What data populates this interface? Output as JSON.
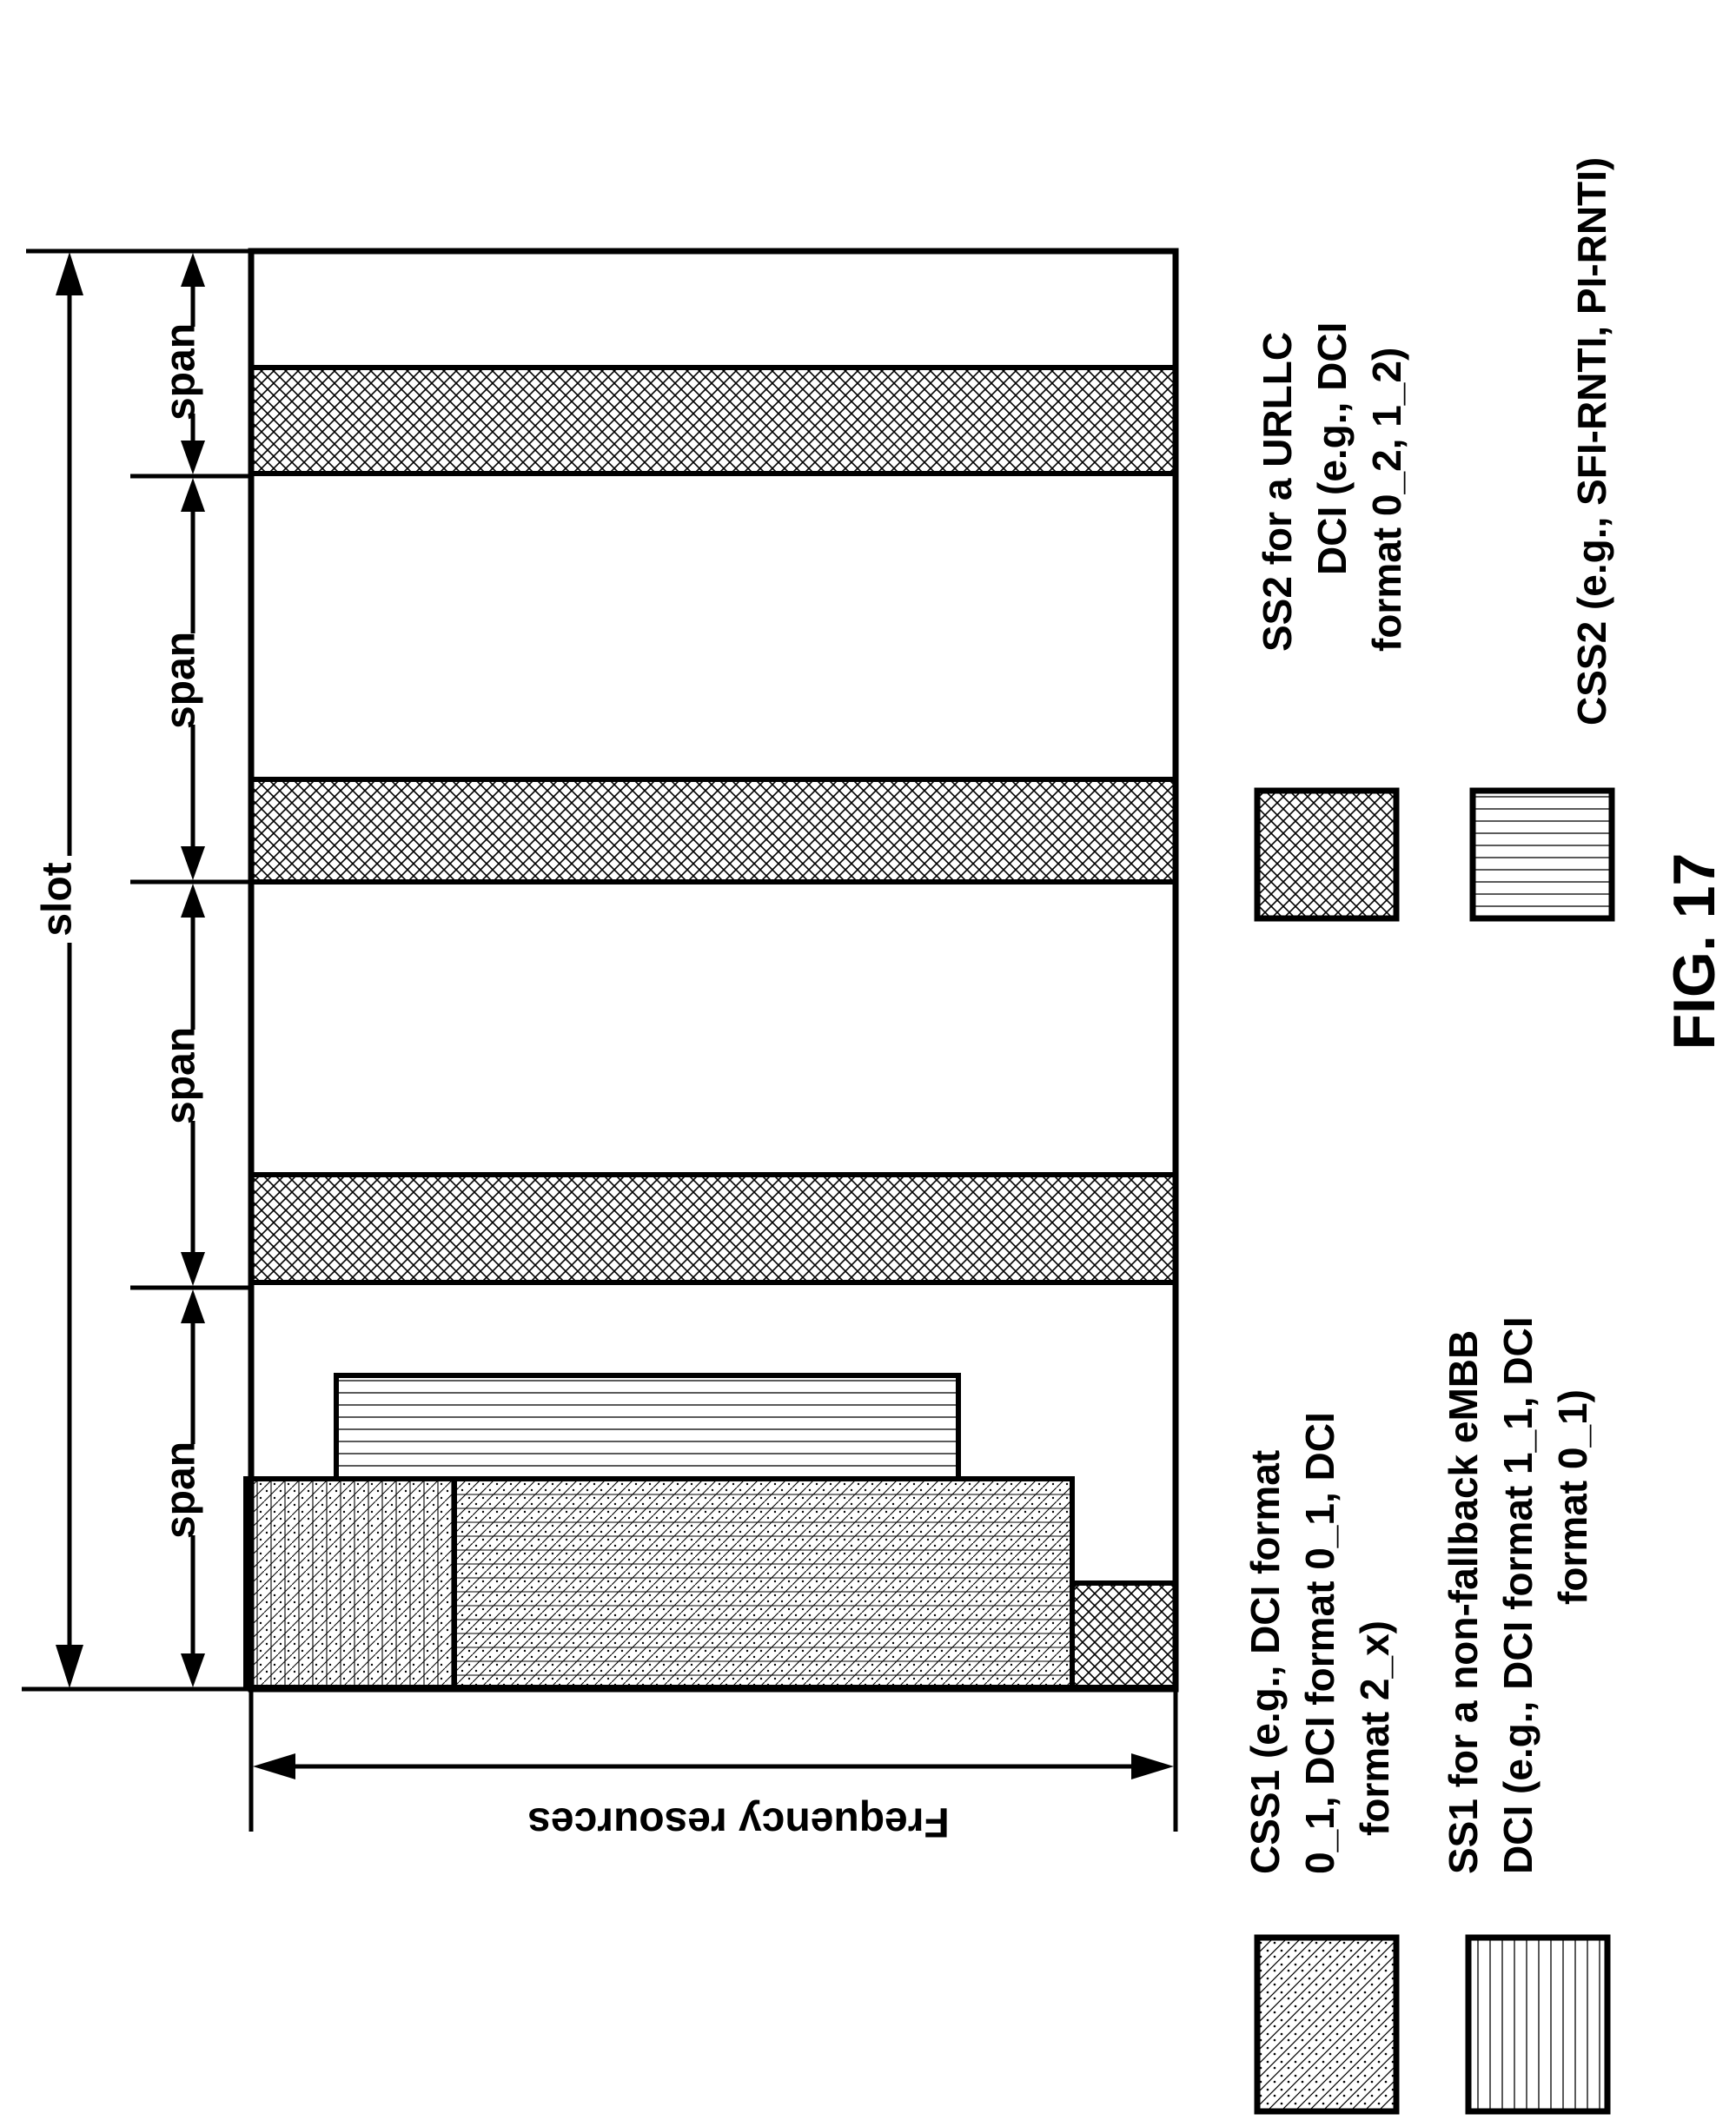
{
  "slot_label": "slot",
  "span_labels": [
    "span",
    "span",
    "span",
    "span"
  ],
  "axis_label": "Frequency resources",
  "legend": [
    {
      "id": "css1",
      "pattern": "dots-diagonal",
      "lines": [
        "CSS1 (e.g., DCI format",
        "0_1, DCI format 0_1, DCI",
        "format 2_x)"
      ]
    },
    {
      "id": "ss1",
      "pattern": "vertical-lines",
      "lines": [
        "SS1 for a non-fallback eMBB",
        "DCI (e.g., DCI format 1_1, DCI",
        "format 0_1)"
      ]
    },
    {
      "id": "ss2",
      "pattern": "crosshatch",
      "lines": [
        "SS2 for a URLLC",
        "DCI (e.g., DCI",
        "format 0_2, 1_2)"
      ]
    },
    {
      "id": "css2",
      "pattern": "horizontal-lines",
      "lines": [
        "CSS2 (e.g., SFI-RNTI, PI-RNTI)"
      ]
    }
  ],
  "figure_caption": "FIG. 17",
  "colors": {
    "stroke": "#000000",
    "background": "#ffffff"
  }
}
